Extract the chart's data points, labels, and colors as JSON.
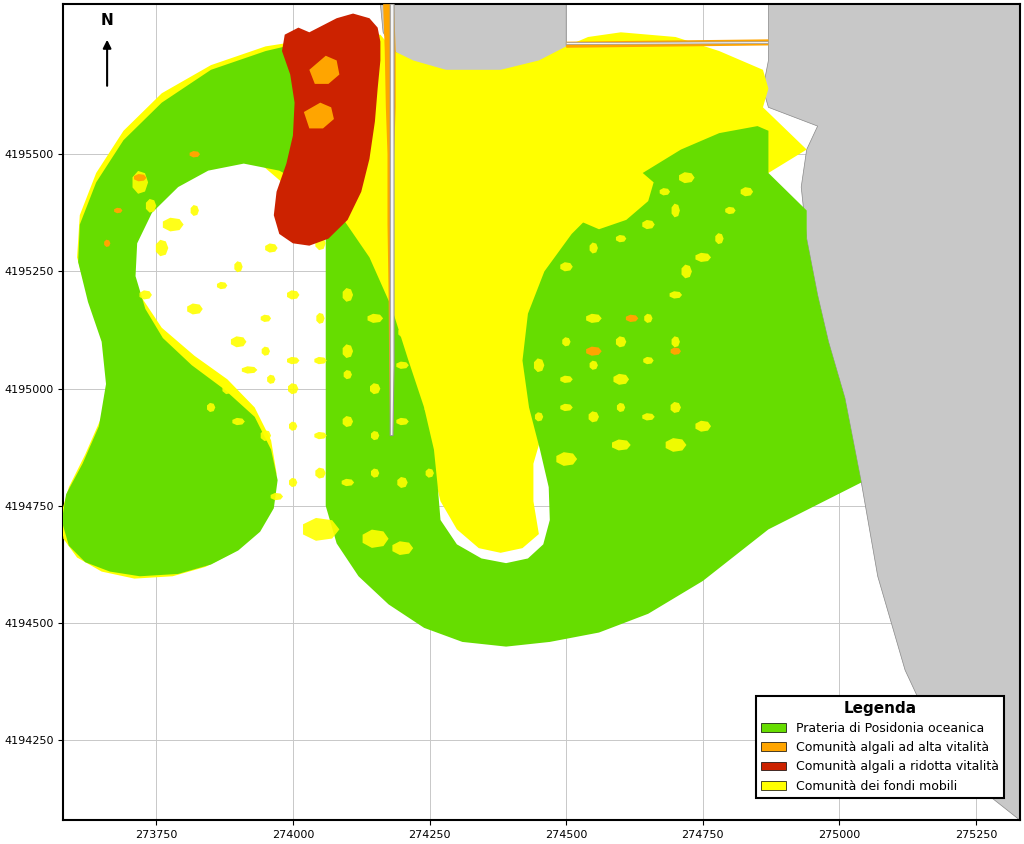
{
  "xlim": [
    273580,
    275330
  ],
  "ylim": [
    4194080,
    4195820
  ],
  "xticks": [
    273750,
    274000,
    274250,
    274500,
    274750,
    275000,
    275250
  ],
  "yticks": [
    4194250,
    4194500,
    4194750,
    4195000,
    4195250,
    4195500
  ],
  "grid_color": "#c8c8c8",
  "background_color": "#ffffff",
  "colors": {
    "posidonia": "#66dd00",
    "alta_vitalita": "#ffa500",
    "ridotta_vitalita": "#cc2200",
    "fondi_mobili": "#ffff00",
    "land": "#c8c8c8",
    "pier": "#e8e8e8"
  },
  "legend": {
    "title": "Legenda",
    "entries": [
      {
        "label": "Prateria di Posidonia oceanica",
        "color": "#66dd00"
      },
      {
        "label": "Comunità algali ad alta vitalità",
        "color": "#ffa500"
      },
      {
        "label": "Comunità algali a ridotta vitalità",
        "color": "#cc2200"
      },
      {
        "label": "Comunità dei fondi mobili",
        "color": "#ffff00"
      }
    ]
  }
}
